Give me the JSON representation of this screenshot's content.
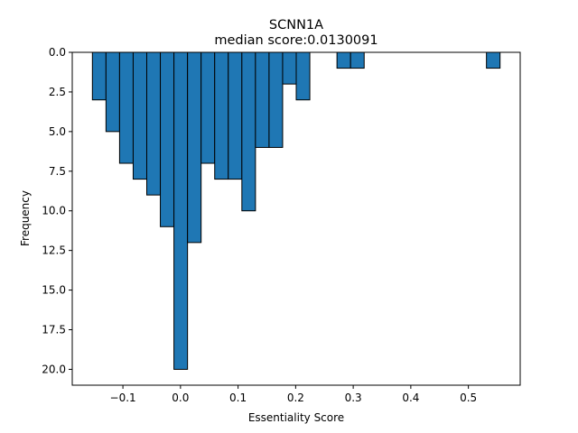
{
  "chart_data": {
    "type": "bar",
    "title": "SCNN1A",
    "subtitle": "median score:0.0130091",
    "xlabel": "Essentiality Score",
    "ylabel": "Frequency",
    "bar_color": "#1f77b4",
    "edge_color": "#000000",
    "y_inverted": true,
    "xlim": [
      -0.188,
      0.59
    ],
    "ylim": [
      0,
      21
    ],
    "xticks": [
      -0.1,
      0.0,
      0.1,
      0.2,
      0.3,
      0.4,
      0.5
    ],
    "xtick_labels": [
      "−0.1",
      "0.0",
      "0.1",
      "0.2",
      "0.3",
      "0.4",
      "0.5"
    ],
    "yticks": [
      0,
      2.5,
      5,
      7.5,
      10,
      12.5,
      15,
      17.5,
      20
    ],
    "ytick_labels": [
      "0.0",
      "2.5",
      "5.0",
      "7.5",
      "10.0",
      "12.5",
      "15.0",
      "17.5",
      "20.0"
    ],
    "bin_start": -0.153,
    "bin_width": 0.0236,
    "counts": [
      3,
      5,
      7,
      8,
      9,
      11,
      20,
      12,
      7,
      8,
      8,
      10,
      6,
      6,
      2,
      3,
      0,
      0,
      1,
      1,
      0,
      0,
      0,
      0,
      0,
      0,
      0,
      0,
      0,
      1
    ]
  }
}
